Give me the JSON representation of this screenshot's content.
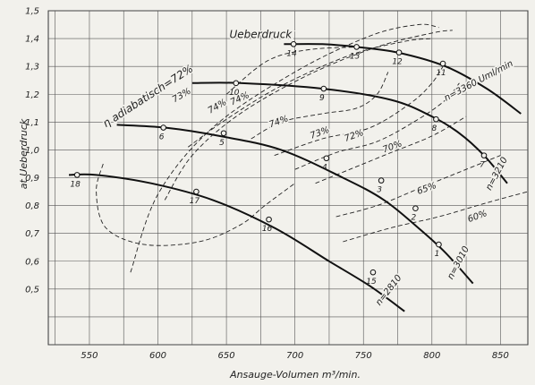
{
  "chart_data": {
    "type": "line",
    "xlabel": "Ansauge-Volumen m³/min.",
    "ylabel": "at Ueberdruck",
    "xlim": [
      520,
      870
    ],
    "ylim": [
      0.3,
      1.5
    ],
    "x_ticks": [
      550,
      600,
      650,
      700,
      750,
      800,
      850
    ],
    "y_ticks": [
      0.5,
      0.6,
      0.7,
      0.8,
      0.9,
      1.0,
      1.1,
      1.2,
      1.3,
      1.4,
      1.5
    ],
    "y_tick_labels": [
      "0,5",
      "0,6",
      "0,7",
      "0,8",
      "0,9",
      "1,0",
      "1,1",
      "1,2",
      "1,3",
      "1,4",
      "1,5"
    ],
    "grid": true,
    "series": [
      {
        "name": "n=3360 Uml/min",
        "x": [
          692,
          720,
          745,
          775,
          810,
          840,
          865
        ],
        "y": [
          1.38,
          1.38,
          1.37,
          1.35,
          1.3,
          1.22,
          1.13
        ]
      },
      {
        "name": "n=3210",
        "x": [
          625,
          660,
          720,
          770,
          800,
          820,
          838,
          855
        ],
        "y": [
          1.24,
          1.24,
          1.22,
          1.18,
          1.12,
          1.06,
          0.98,
          0.88
        ]
      },
      {
        "name": "n=3010",
        "x": [
          570,
          605,
          645,
          690,
          735,
          765,
          790,
          810,
          830
        ],
        "y": [
          1.09,
          1.08,
          1.05,
          1.0,
          0.9,
          0.82,
          0.72,
          0.63,
          0.52
        ]
      },
      {
        "name": "n=2810",
        "x": [
          535,
          555,
          595,
          640,
          685,
          725,
          755,
          780
        ],
        "y": [
          0.91,
          0.91,
          0.88,
          0.82,
          0.72,
          0.6,
          0.51,
          0.42
        ]
      }
    ],
    "points": [
      {
        "label": "1",
        "x": 805,
        "y": 0.66
      },
      {
        "label": "2",
        "x": 788,
        "y": 0.79
      },
      {
        "label": "3",
        "x": 763,
        "y": 0.89
      },
      {
        "label": "4",
        "x": 723,
        "y": 0.97
      },
      {
        "label": "5",
        "x": 648,
        "y": 1.06
      },
      {
        "label": "6",
        "x": 604,
        "y": 1.08
      },
      {
        "label": "7",
        "x": 838,
        "y": 0.98
      },
      {
        "label": "8",
        "x": 803,
        "y": 1.11
      },
      {
        "label": "9",
        "x": 721,
        "y": 1.22
      },
      {
        "label": "10",
        "x": 657,
        "y": 1.24
      },
      {
        "label": "11",
        "x": 808,
        "y": 1.31
      },
      {
        "label": "12",
        "x": 776,
        "y": 1.35
      },
      {
        "label": "13",
        "x": 745,
        "y": 1.37
      },
      {
        "label": "14",
        "x": 699,
        "y": 1.38
      },
      {
        "label": "15",
        "x": 757,
        "y": 0.56
      },
      {
        "label": "16",
        "x": 681,
        "y": 0.75
      },
      {
        "label": "17",
        "x": 628,
        "y": 0.85
      },
      {
        "label": "18",
        "x": 541,
        "y": 0.91
      }
    ],
    "speed_labels": [
      {
        "text": "n=3360 Uml/min",
        "x": 835,
        "y": 1.24,
        "angle": -28
      },
      {
        "text": "n=3210",
        "x": 849,
        "y": 0.91,
        "angle": -62
      },
      {
        "text": "n=3010",
        "x": 821,
        "y": 0.59,
        "angle": -62
      },
      {
        "text": "n=2810",
        "x": 770,
        "y": 0.49,
        "angle": -52
      }
    ],
    "curve_title": {
      "text": "Ueberdruck",
      "x": 675,
      "y": 1.385
    },
    "efficiency_contours": [
      {
        "label": "η adiabatisch=72%",
        "x": [
          580,
          600,
          640,
          700,
          755,
          790,
          805
        ],
        "y": [
          0.56,
          0.84,
          1.08,
          1.28,
          1.41,
          1.45,
          1.44
        ],
        "label_x": 562,
        "label_y": 1.08,
        "label_angle": -33
      },
      {
        "label": "73%",
        "x": [
          605,
          625,
          660,
          710,
          760,
          800,
          815
        ],
        "y": [
          0.82,
          0.98,
          1.13,
          1.27,
          1.37,
          1.42,
          1.43
        ],
        "label_x": 612,
        "label_y": 1.17,
        "label_angle": -30
      },
      {
        "label": "74%",
        "x": [
          622,
          650,
          690,
          740,
          780,
          800
        ],
        "y": [
          1.01,
          1.11,
          1.23,
          1.34,
          1.39,
          1.4
        ],
        "label_x": 638,
        "label_y": 1.13,
        "label_angle": -30
      },
      {
        "label": "74%",
        "x": [
          650,
          680,
          710,
          748
        ],
        "y": [
          1.2,
          1.32,
          1.36,
          1.37
        ],
        "label_x": 654,
        "label_y": 1.16,
        "label_angle": -25
      },
      {
        "label": "74%",
        "x": [
          668,
          690,
          720,
          745,
          760,
          768
        ],
        "y": [
          1.04,
          1.1,
          1.13,
          1.15,
          1.2,
          1.28
        ],
        "label_x": 682,
        "label_y": 1.08,
        "label_angle": -20
      },
      {
        "label": "73%",
        "x": [
          685,
          720,
          755,
          785,
          800,
          808
        ],
        "y": [
          0.98,
          1.04,
          1.08,
          1.17,
          1.24,
          1.3
        ],
        "label_x": 712,
        "label_y": 1.04,
        "label_angle": -20
      },
      {
        "label": "72%",
        "x": [
          700,
          730,
          760,
          790,
          810,
          820
        ],
        "y": [
          0.93,
          0.99,
          1.03,
          1.11,
          1.18,
          1.24
        ],
        "label_x": 737,
        "label_y": 1.03,
        "label_angle": -20
      },
      {
        "label": "70%",
        "x": [
          715,
          740,
          770,
          800,
          825
        ],
        "y": [
          0.88,
          0.93,
          0.99,
          1.05,
          1.12
        ],
        "label_x": 765,
        "label_y": 0.99,
        "label_angle": -20
      },
      {
        "label": "65%",
        "x": [
          730,
          760,
          790,
          820,
          850
        ],
        "y": [
          0.76,
          0.8,
          0.86,
          0.92,
          0.98
        ],
        "label_x": 790,
        "label_y": 0.84,
        "label_angle": -20
      },
      {
        "label": "60%",
        "x": [
          735,
          770,
          805,
          840,
          870
        ],
        "y": [
          0.67,
          0.72,
          0.76,
          0.81,
          0.85
        ],
        "label_x": 827,
        "label_y": 0.74,
        "label_angle": -20
      },
      {
        "label": "",
        "x": [
          560,
          555,
          562,
          590,
          630,
          660,
          678,
          700
        ],
        "y": [
          0.95,
          0.85,
          0.72,
          0.66,
          0.67,
          0.73,
          0.8,
          0.88
        ],
        "label_x": 0,
        "label_y": 0,
        "label_angle": 0
      }
    ]
  }
}
